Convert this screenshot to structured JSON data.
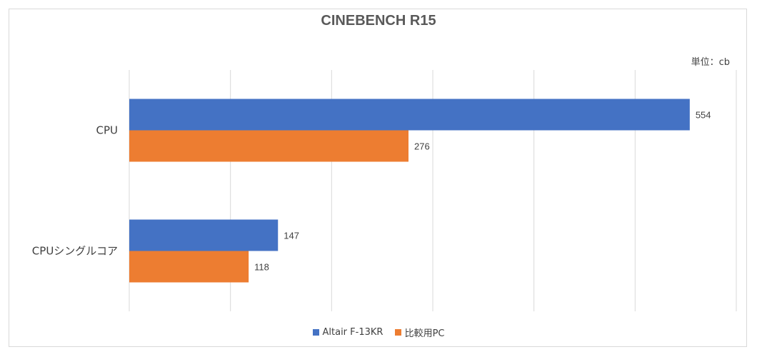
{
  "chart_data": {
    "type": "bar",
    "orientation": "horizontal",
    "title": "CINEBENCH R15",
    "unit_label": "単位：cb",
    "categories": [
      "CPU",
      "CPUシングルコア"
    ],
    "series": [
      {
        "name": "Altair F-13KR",
        "values": [
          554,
          147
        ],
        "color": "#4472c4"
      },
      {
        "name": "比較用PC",
        "values": [
          276,
          118
        ],
        "color": "#ed7d31"
      }
    ],
    "xlim": [
      0,
      600
    ],
    "x_gridline_step": 100,
    "grid": true,
    "legend_position": "bottom"
  }
}
